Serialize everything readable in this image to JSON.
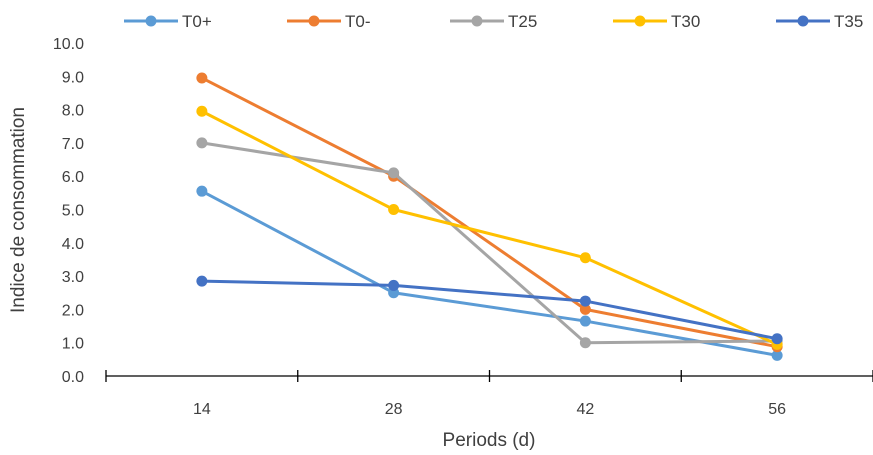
{
  "chart_data": {
    "type": "line",
    "categories": [
      "14",
      "28",
      "42",
      "56"
    ],
    "xlabel": "Periods (d)",
    "ylabel": "Indice de consommation",
    "ylim": [
      0,
      10
    ],
    "y_ticks": [
      "0.0",
      "1.0",
      "2.0",
      "3.0",
      "4.0",
      "5.0",
      "6.0",
      "7.0",
      "8.0",
      "9.0",
      "10.0"
    ],
    "grid": false,
    "legend_position": "top",
    "series": [
      {
        "name": "T0+",
        "color": "#5B9BD5",
        "values": [
          5.55,
          2.5,
          1.65,
          0.62
        ]
      },
      {
        "name": "T0-",
        "color": "#ED7D31",
        "values": [
          8.95,
          6.0,
          2.0,
          0.88
        ]
      },
      {
        "name": "T25",
        "color": "#A5A5A5",
        "values": [
          7.0,
          6.1,
          1.0,
          1.05
        ]
      },
      {
        "name": "T30",
        "color": "#FFC000",
        "values": [
          7.95,
          5.0,
          3.55,
          0.95
        ]
      },
      {
        "name": "T35",
        "color": "#4472C4",
        "values": [
          2.85,
          2.72,
          2.25,
          1.12
        ]
      }
    ]
  }
}
